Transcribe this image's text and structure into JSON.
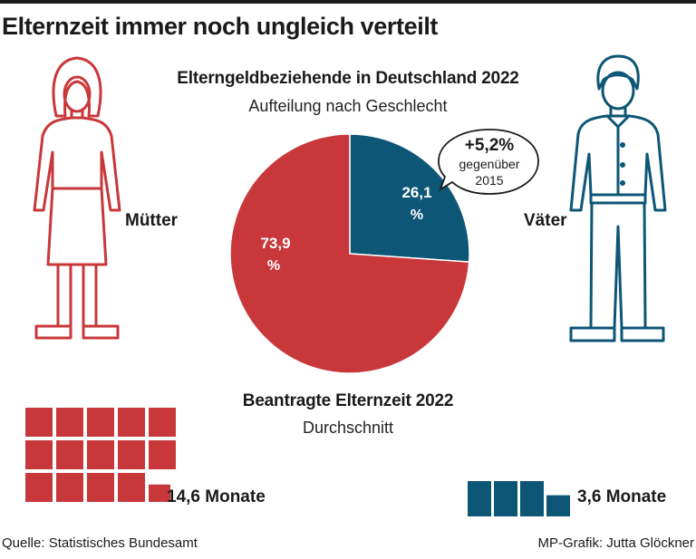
{
  "headline": "Elternzeit immer noch ungleich verteilt",
  "colors": {
    "mothers": "#c8383a",
    "fathers": "#0d5676",
    "text": "#1a1a1a"
  },
  "chart_data": [
    {
      "type": "pie",
      "title": "Elterngeldbeziehende in Deutschland 2022",
      "subtitle": "Aufteilung nach Geschlecht",
      "slices": [
        {
          "name": "Väter",
          "value": 26.1,
          "label": "26,1",
          "unit": "%",
          "color": "#0d5676"
        },
        {
          "name": "Mütter",
          "value": 73.9,
          "label": "73,9",
          "unit": "%",
          "color": "#c8383a"
        }
      ],
      "annotation": {
        "value": "+5,2%",
        "line1": "gegenüber",
        "line2": "2015"
      }
    },
    {
      "type": "waffle",
      "title": "Beantragte Elternzeit 2022",
      "subtitle": "Durchschnitt",
      "series": [
        {
          "name": "Mütter",
          "value": 14.6,
          "label": "14,6 Monate",
          "color": "#c8383a"
        },
        {
          "name": "Väter",
          "value": 3.6,
          "label": "3,6 Monate",
          "color": "#0d5676"
        }
      ]
    }
  ],
  "labels": {
    "mothers": "Mütter",
    "fathers": "Väter"
  },
  "source": "Quelle: Statistisches Bundesamt",
  "credit": "MP-Grafik: Jutta Glöckner"
}
